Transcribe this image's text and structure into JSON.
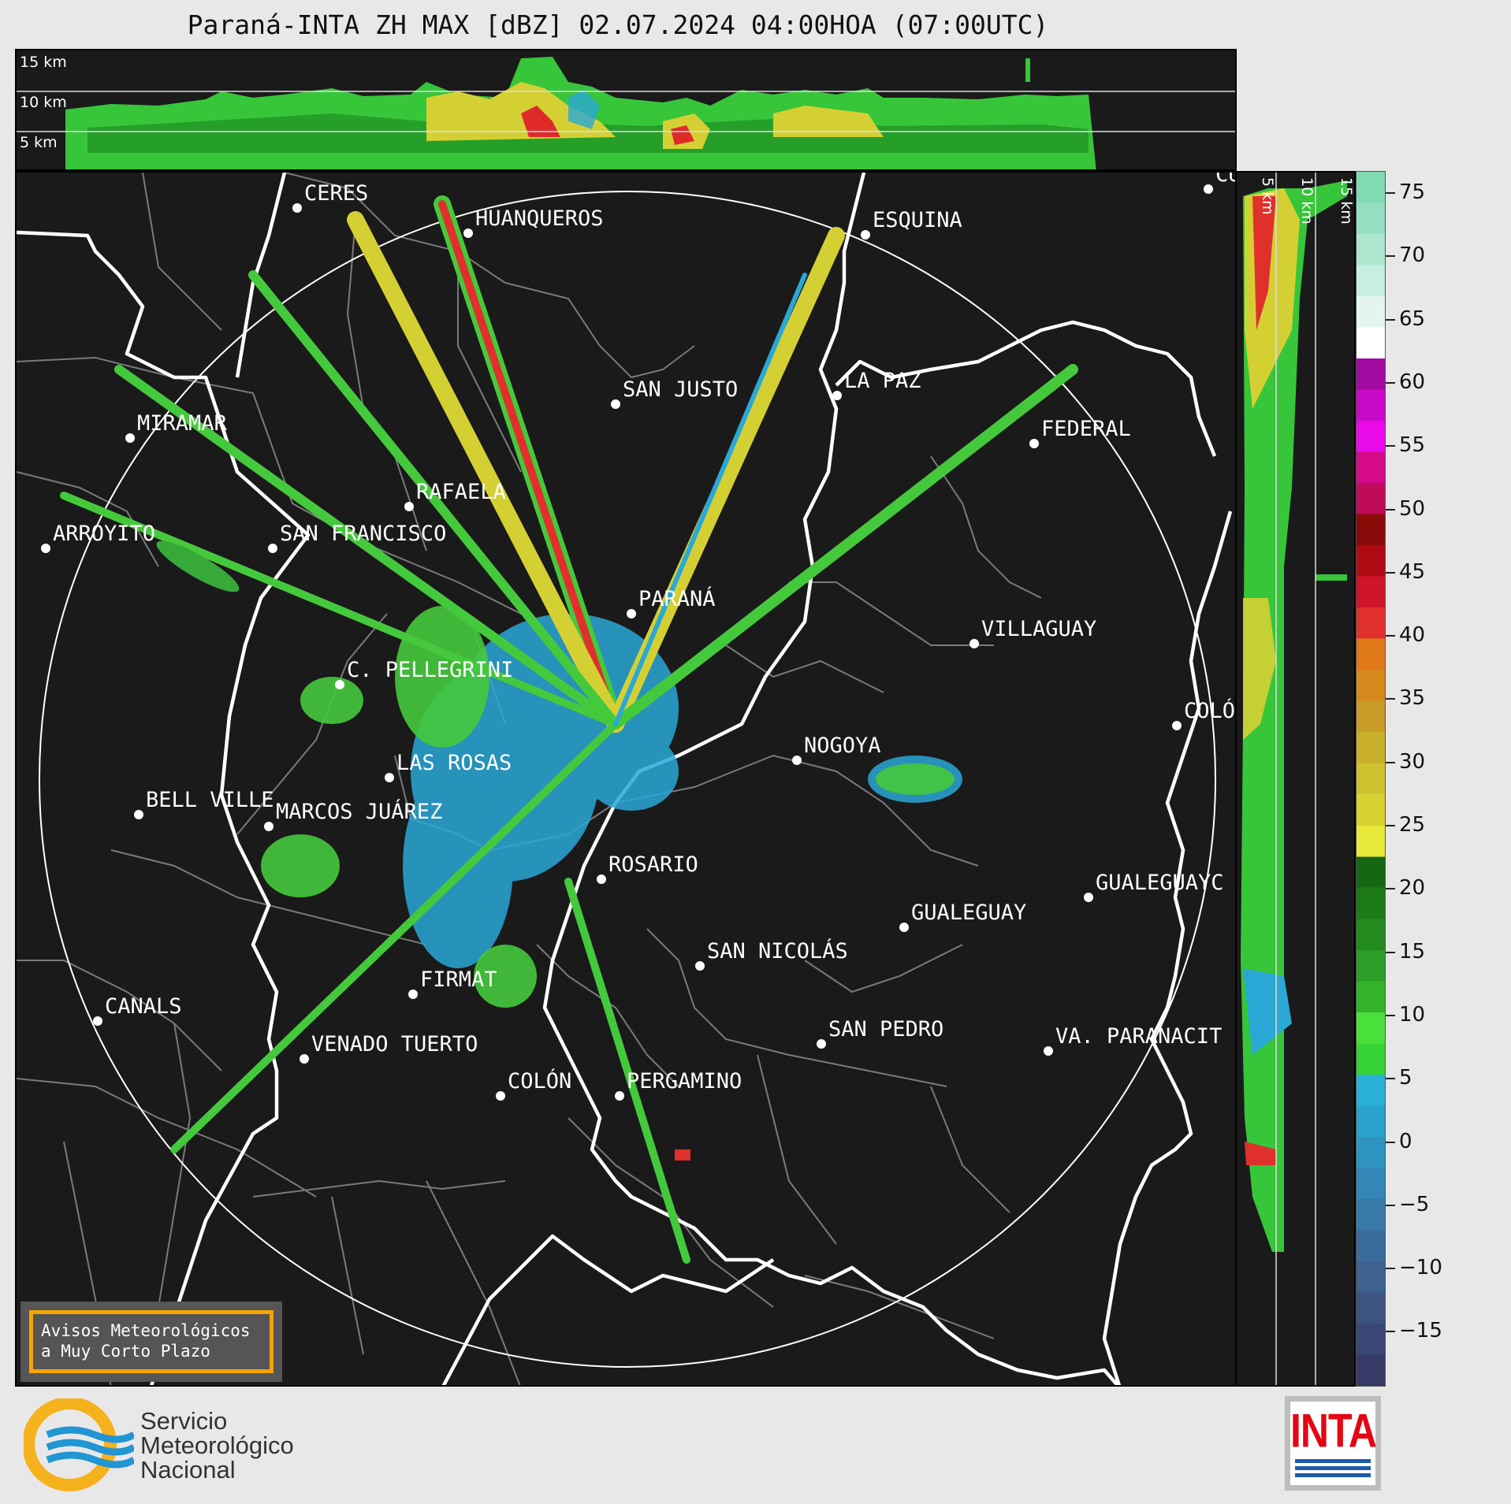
{
  "title": "Paraná-INTA ZH MAX [dBZ] 02.07.2024 04:00HOA (07:00UTC)",
  "top_panel": {
    "height_labels": [
      "15 km",
      "10 km",
      "5 km"
    ]
  },
  "side_panel": {
    "height_labels": [
      "5 km",
      "10 km",
      "15 km"
    ]
  },
  "colorbar": {
    "unit": "dBZ",
    "ticks": [
      "75",
      "70",
      "65",
      "60",
      "55",
      "50",
      "45",
      "40",
      "35",
      "30",
      "25",
      "20",
      "15",
      "10",
      "5",
      "0",
      "−5",
      "−10",
      "−15"
    ],
    "colors": [
      "#363a66",
      "#3a4674",
      "#3d5382",
      "#3d6190",
      "#3a6d9c",
      "#3879aa",
      "#3486b6",
      "#2f94c2",
      "#29a3cc",
      "#2bb1d8",
      "#36d336",
      "#49e03c",
      "#33b32a",
      "#2b9d28",
      "#238a20",
      "#1c7a18",
      "#166612",
      "#e8e83a",
      "#d8d232",
      "#cfc230",
      "#c8b02c",
      "#c89a28",
      "#d48a1c",
      "#e07a18",
      "#e0302c",
      "#d01428",
      "#b00a14",
      "#8a0a0a",
      "#c00a5a",
      "#d40a8a",
      "#e80ae8",
      "#c80ac8",
      "#a00aa0",
      "#ffffff",
      "#e4f5ee",
      "#c7eedf",
      "#ade6cf",
      "#95dfc2",
      "#82dab5"
    ]
  },
  "cities": [
    {
      "name": "CERES"
    },
    {
      "name": "HUANQUEROS"
    },
    {
      "name": "ESQUINA"
    },
    {
      "name": "CU"
    },
    {
      "name": "SAN JUSTO"
    },
    {
      "name": "LA PAZ"
    },
    {
      "name": "MIRAMAR"
    },
    {
      "name": "FEDERAL"
    },
    {
      "name": "RAFAELA"
    },
    {
      "name": "ARROYITO"
    },
    {
      "name": "SAN FRANCISCO"
    },
    {
      "name": "PARANÁ"
    },
    {
      "name": "VILLAGUAY"
    },
    {
      "name": "C. PELLEGRINI"
    },
    {
      "name": "COLÓ"
    },
    {
      "name": "NOGOYA"
    },
    {
      "name": "LAS ROSAS"
    },
    {
      "name": "BELL VILLE"
    },
    {
      "name": "MARCOS JUÁREZ"
    },
    {
      "name": "ROSARIO"
    },
    {
      "name": "GUALEGUAYC"
    },
    {
      "name": "GUALEGUAY"
    },
    {
      "name": "SAN NICOLÁS"
    },
    {
      "name": "FIRMAT"
    },
    {
      "name": "CANALS"
    },
    {
      "name": "SAN PEDRO"
    },
    {
      "name": "VA. PARANACIT"
    },
    {
      "name": "VENADO TUERTO"
    },
    {
      "name": "COLÓN"
    },
    {
      "name": "PERGAMINO"
    }
  ],
  "notice": {
    "line1": "Avisos Meteorológicos",
    "line2": "a Muy Corto Plazo"
  },
  "logos": {
    "smn_line1": "Servicio",
    "smn_line2": "Meteorológico",
    "smn_line3": "Nacional",
    "inta": "INTA"
  }
}
